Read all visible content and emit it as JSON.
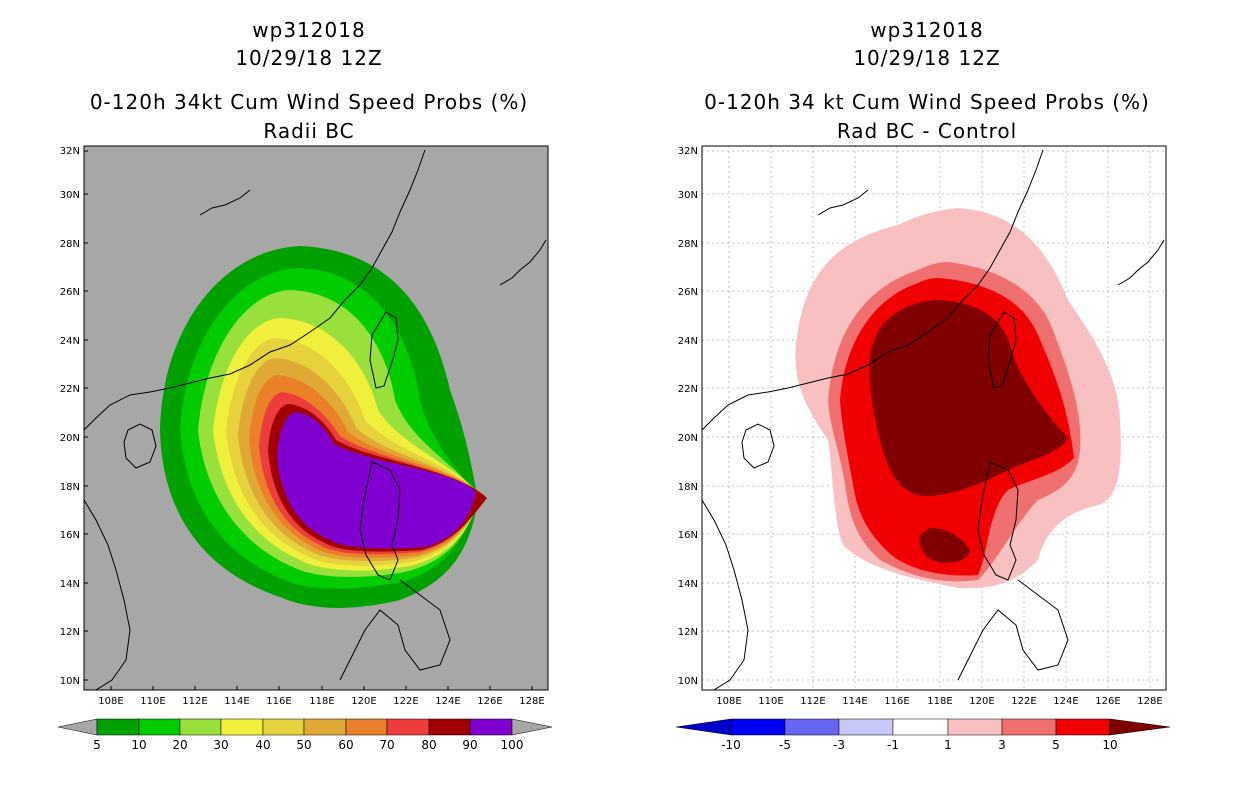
{
  "chart_data": [
    {
      "type": "heatmap",
      "id": "left",
      "title_lines": [
        "wp312018",
        "10/29/18 12Z",
        "0-120h 34kt Cum Wind Speed Probs (%)",
        "Radii BC"
      ],
      "x_ticks": [
        "108E",
        "110E",
        "112E",
        "114E",
        "116E",
        "118E",
        "120E",
        "122E",
        "124E",
        "126E",
        "128E"
      ],
      "y_ticks": [
        "32N",
        "30N",
        "28N",
        "26N",
        "24N",
        "22N",
        "20N",
        "18N",
        "16N",
        "14N",
        "12N",
        "10N"
      ],
      "xlim_degE": [
        106.8,
        128.8
      ],
      "ylim_degN": [
        9.7,
        32
      ],
      "grid": false,
      "background": "#a7a7a7",
      "colorbar": {
        "labels": [
          "5",
          "10",
          "20",
          "30",
          "40",
          "50",
          "60",
          "70",
          "80",
          "90",
          "100"
        ],
        "colors": [
          "#00a000",
          "#00cc00",
          "#98e03c",
          "#f0f03c",
          "#e6d23c",
          "#e0a834",
          "#ea8028",
          "#ec3c3c",
          "#a00000",
          "#8000d0"
        ]
      }
    },
    {
      "type": "heatmap",
      "id": "right",
      "title_lines": [
        "wp312018",
        "10/29/18 12Z",
        "0-120h 34 kt Cum Wind Speed Probs (%)",
        "Rad BC - Control"
      ],
      "x_ticks": [
        "108E",
        "110E",
        "112E",
        "114E",
        "116E",
        "118E",
        "120E",
        "122E",
        "124E",
        "126E",
        "128E"
      ],
      "y_ticks": [
        "32N",
        "30N",
        "28N",
        "26N",
        "24N",
        "22N",
        "20N",
        "18N",
        "16N",
        "14N",
        "12N",
        "10N"
      ],
      "xlim_degE": [
        106.8,
        128.8
      ],
      "ylim_degN": [
        9.7,
        32
      ],
      "grid": true,
      "background": "#ffffff",
      "colorbar": {
        "labels": [
          "-10",
          "-5",
          "-3",
          "-1",
          "1",
          "3",
          "5",
          "10"
        ],
        "colors": [
          "#0000c8",
          "#0000f0",
          "#6666f0",
          "#c8c8f8",
          "#ffffff",
          "#f8c0c0",
          "#f07070",
          "#f00000",
          "#800000"
        ]
      }
    }
  ]
}
